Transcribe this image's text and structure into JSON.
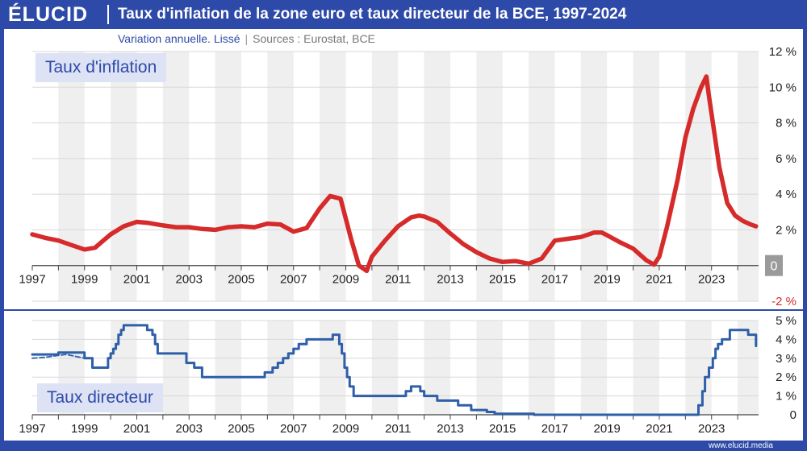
{
  "header": {
    "logo": "ÉLUCID",
    "title": "Taux d'inflation de la zone euro et taux directeur de la BCE, 1997-2024"
  },
  "subtitle": {
    "text": "Variation annuelle. Lissé",
    "sources": "Sources : Eurostat, BCE"
  },
  "footer": {
    "url": "www.elucid.media"
  },
  "colors": {
    "brand": "#2e4aa8",
    "inflation": "#d62b2b",
    "rate": "#2e5fa8",
    "band": "#efefef"
  },
  "chart_data": [
    {
      "type": "line",
      "panel_label": "Taux d'inflation",
      "ylim": [
        -2,
        12
      ],
      "xlim": [
        1997,
        2024.8
      ],
      "y_ticks": [
        "12 %",
        "10 %",
        "8 %",
        "6 %",
        "4 %",
        "2 %",
        "0",
        "-2 %"
      ],
      "x_ticks": [
        "1997",
        "1999",
        "2001",
        "2003",
        "2005",
        "2007",
        "2009",
        "2011",
        "2013",
        "2015",
        "2017",
        "2019",
        "2021",
        "2023"
      ],
      "series": [
        {
          "x": [
            1997,
            1997.5,
            1998,
            1998.5,
            1999,
            1999.4,
            2000,
            2000.5,
            2001,
            2001.4,
            2002,
            2002.5,
            2003,
            2003.5,
            2004,
            2004.5,
            2005,
            2005.5,
            2006,
            2006.5,
            2007,
            2007.5,
            2008,
            2008.4,
            2008.8,
            2009.2,
            2009.5,
            2009.8,
            2010,
            2010.5,
            2011,
            2011.5,
            2011.8,
            2012,
            2012.5,
            2013,
            2013.5,
            2014,
            2014.5,
            2015,
            2015.5,
            2016,
            2016.5,
            2017,
            2017.5,
            2018,
            2018.5,
            2018.8,
            2019,
            2019.5,
            2020,
            2020.5,
            2020.8,
            2021,
            2021.3,
            2021.7,
            2022,
            2022.3,
            2022.6,
            2022.8,
            2022.9,
            2023.1,
            2023.3,
            2023.6,
            2023.9,
            2024.2,
            2024.5,
            2024.7
          ],
          "y": [
            1.75,
            1.55,
            1.4,
            1.15,
            0.9,
            1.0,
            1.75,
            2.2,
            2.45,
            2.4,
            2.25,
            2.15,
            2.15,
            2.05,
            2.0,
            2.15,
            2.2,
            2.15,
            2.35,
            2.3,
            1.9,
            2.1,
            3.2,
            3.9,
            3.75,
            1.5,
            0.0,
            -0.3,
            0.5,
            1.4,
            2.2,
            2.7,
            2.8,
            2.75,
            2.45,
            1.8,
            1.2,
            0.75,
            0.4,
            0.2,
            0.25,
            0.1,
            0.4,
            1.4,
            1.5,
            1.6,
            1.85,
            1.85,
            1.7,
            1.3,
            0.95,
            0.3,
            0.05,
            0.5,
            2.2,
            4.8,
            7.2,
            8.8,
            10.0,
            10.6,
            9.5,
            7.5,
            5.5,
            3.5,
            2.8,
            2.5,
            2.3,
            2.2
          ]
        }
      ]
    },
    {
      "type": "line",
      "panel_label": "Taux directeur",
      "ylim": [
        0,
        5
      ],
      "xlim": [
        1997,
        2024.8
      ],
      "y_ticks": [
        "5 %",
        "4 %",
        "3 %",
        "2 %",
        "1 %",
        "0"
      ],
      "x_ticks": [
        "1997",
        "1999",
        "2001",
        "2003",
        "2005",
        "2007",
        "2009",
        "2011",
        "2013",
        "2015",
        "2017",
        "2019",
        "2021",
        "2023"
      ],
      "series": [
        {
          "step": true,
          "x": [
            1997,
            1998,
            1999,
            1999.3,
            1999.9,
            2000,
            2000.1,
            2000.2,
            2000.3,
            2000.4,
            2000.5,
            2000.6,
            2000.8,
            2001.4,
            2001.6,
            2001.7,
            2001.8,
            2002.9,
            2003.2,
            2003.5,
            2005.9,
            2006.2,
            2006.4,
            2006.6,
            2006.8,
            2007,
            2007.2,
            2007.5,
            2008.5,
            2008.75,
            2008.85,
            2008.95,
            2009.05,
            2009.15,
            2009.3,
            2011.3,
            2011.5,
            2011.85,
            2012.0,
            2012.5,
            2013.3,
            2013.8,
            2014.4,
            2014.7,
            2016.2,
            2022.5,
            2022.65,
            2022.75,
            2022.9,
            2023.05,
            2023.15,
            2023.25,
            2023.4,
            2023.7,
            2024.4,
            2024.7
          ],
          "y": [
            3.2,
            3.3,
            3.0,
            2.5,
            3.0,
            3.25,
            3.5,
            3.75,
            4.25,
            4.5,
            4.75,
            4.75,
            4.75,
            4.5,
            4.25,
            3.75,
            3.25,
            2.75,
            2.5,
            2.0,
            2.25,
            2.5,
            2.75,
            3.0,
            3.25,
            3.5,
            3.75,
            4.0,
            4.25,
            3.75,
            3.25,
            2.5,
            2.0,
            1.5,
            1.0,
            1.25,
            1.5,
            1.25,
            1.0,
            0.75,
            0.5,
            0.25,
            0.15,
            0.05,
            0.0,
            0.5,
            1.25,
            2.0,
            2.5,
            3.0,
            3.5,
            3.75,
            4.0,
            4.5,
            4.25,
            3.65
          ]
        },
        {
          "dashed": true,
          "x": [
            1997,
            1997.5,
            1998,
            1998.3,
            1999
          ],
          "y": [
            3.0,
            3.05,
            3.15,
            3.2,
            3.0
          ]
        }
      ]
    }
  ]
}
